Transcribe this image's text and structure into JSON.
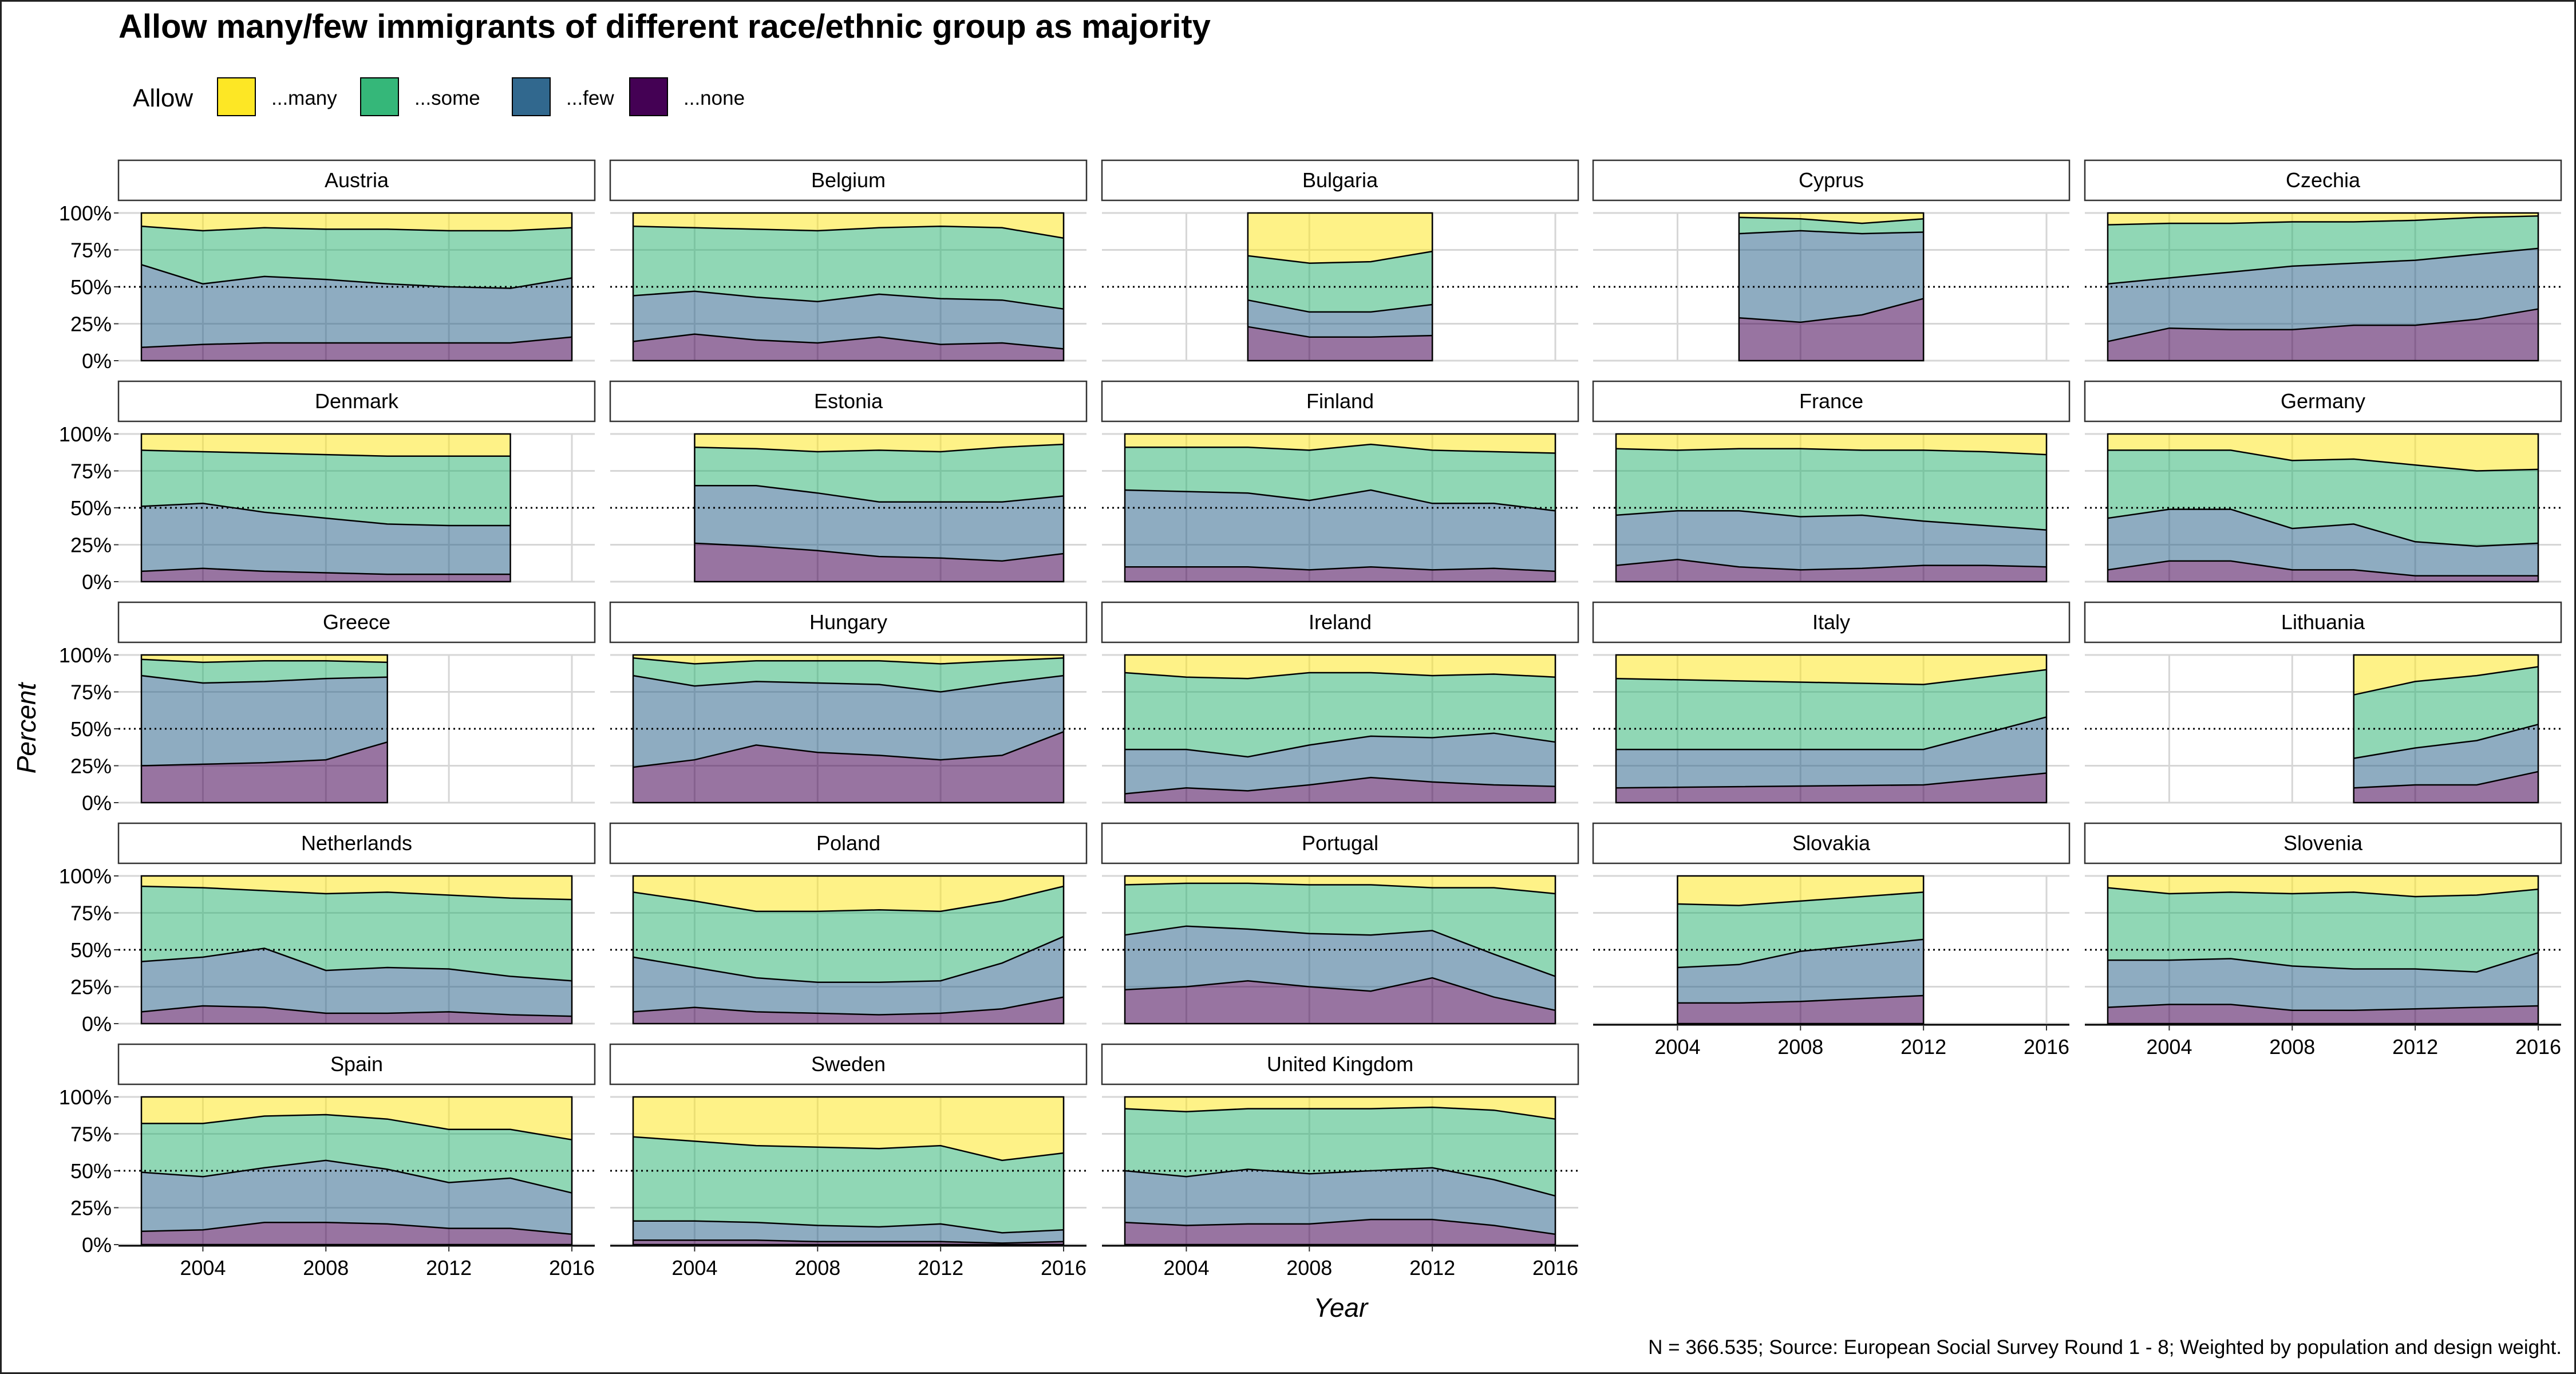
{
  "chart_data": {
    "type": "area",
    "title": "Allow many/few immigrants of different race/ethnic group as majority",
    "xlabel": "Year",
    "ylabel": "Percent",
    "caption": "N = 366.535; Source: European Social Survey Round 1 - 8; Weighted by population and design weight.",
    "legend_title": "Allow",
    "legend_position": "top-left",
    "legend": [
      {
        "key": "many",
        "label": "...many",
        "color": "#FDE725"
      },
      {
        "key": "some",
        "label": "...some",
        "color": "#35B779"
      },
      {
        "key": "few",
        "label": "...few",
        "color": "#31688E"
      },
      {
        "key": "none",
        "label": "...none",
        "color": "#440154"
      }
    ],
    "x_ticks": [
      2004,
      2008,
      2012,
      2016
    ],
    "xlim": [
      2002,
      2016
    ],
    "y_ticks": [
      "0%",
      "25%",
      "50%",
      "75%",
      "100%"
    ],
    "ylim": [
      0,
      100
    ],
    "reference_line": 50,
    "grid": true,
    "stack_note": "boundaries are cumulative percent from bottom: none, none+few, none+few+some",
    "panels": [
      {
        "name": "Austria",
        "years": [
          2002,
          2004,
          2006,
          2008,
          2010,
          2012,
          2014,
          2016
        ],
        "none": [
          9,
          11,
          12,
          12,
          12,
          12,
          12,
          16
        ],
        "none_few": [
          65,
          52,
          57,
          55,
          52,
          50,
          49,
          56
        ],
        "none_few_some": [
          91,
          88,
          90,
          89,
          89,
          88,
          88,
          90
        ]
      },
      {
        "name": "Belgium",
        "years": [
          2002,
          2004,
          2006,
          2008,
          2010,
          2012,
          2014,
          2016
        ],
        "none": [
          13,
          18,
          14,
          12,
          16,
          11,
          12,
          8
        ],
        "none_few": [
          44,
          47,
          43,
          40,
          45,
          42,
          41,
          35
        ],
        "none_few_some": [
          91,
          90,
          89,
          88,
          90,
          91,
          90,
          83
        ]
      },
      {
        "name": "Bulgaria",
        "years": [
          2006,
          2008,
          2010,
          2012
        ],
        "none": [
          23,
          16,
          16,
          17
        ],
        "none_few": [
          41,
          33,
          33,
          38
        ],
        "none_few_some": [
          71,
          66,
          67,
          74
        ]
      },
      {
        "name": "Cyprus",
        "years": [
          2006,
          2008,
          2010,
          2012
        ],
        "none": [
          29,
          26,
          31,
          42
        ],
        "none_few": [
          86,
          88,
          86,
          87
        ],
        "none_few_some": [
          97,
          96,
          93,
          96
        ]
      },
      {
        "name": "Czechia",
        "years": [
          2002,
          2004,
          2006,
          2008,
          2010,
          2012,
          2014,
          2016
        ],
        "none": [
          13,
          22,
          21,
          21,
          24,
          24,
          28,
          35
        ],
        "none_few": [
          52,
          56,
          60,
          64,
          66,
          68,
          72,
          76
        ],
        "none_few_some": [
          92,
          93,
          93,
          94,
          94,
          95,
          97,
          98
        ]
      },
      {
        "name": "Denmark",
        "years": [
          2002,
          2004,
          2006,
          2008,
          2010,
          2012,
          2014
        ],
        "none": [
          7,
          9,
          7,
          6,
          5,
          5,
          5
        ],
        "none_few": [
          51,
          53,
          47,
          43,
          39,
          38,
          38
        ],
        "none_few_some": [
          89,
          88,
          87,
          86,
          85,
          85,
          85
        ]
      },
      {
        "name": "Estonia",
        "years": [
          2004,
          2006,
          2008,
          2010,
          2012,
          2014,
          2016
        ],
        "none": [
          26,
          24,
          21,
          17,
          16,
          14,
          19
        ],
        "none_few": [
          65,
          65,
          60,
          54,
          54,
          54,
          58
        ],
        "none_few_some": [
          91,
          90,
          88,
          89,
          88,
          91,
          93
        ]
      },
      {
        "name": "Finland",
        "years": [
          2002,
          2004,
          2006,
          2008,
          2010,
          2012,
          2014,
          2016
        ],
        "none": [
          10,
          10,
          10,
          8,
          10,
          8,
          9,
          7
        ],
        "none_few": [
          62,
          61,
          60,
          55,
          62,
          53,
          53,
          48
        ],
        "none_few_some": [
          91,
          91,
          91,
          89,
          93,
          89,
          88,
          87
        ]
      },
      {
        "name": "France",
        "years": [
          2002,
          2004,
          2006,
          2008,
          2010,
          2012,
          2014,
          2016
        ],
        "none": [
          11,
          15,
          10,
          8,
          9,
          11,
          11,
          10
        ],
        "none_few": [
          45,
          48,
          48,
          44,
          45,
          41,
          38,
          35
        ],
        "none_few_some": [
          90,
          89,
          90,
          90,
          89,
          89,
          88,
          86
        ]
      },
      {
        "name": "Germany",
        "years": [
          2002,
          2004,
          2006,
          2008,
          2010,
          2012,
          2014,
          2016
        ],
        "none": [
          8,
          14,
          14,
          8,
          8,
          4,
          4,
          4
        ],
        "none_few": [
          43,
          49,
          49,
          36,
          39,
          27,
          24,
          26
        ],
        "none_few_some": [
          89,
          89,
          89,
          82,
          83,
          79,
          75,
          76
        ]
      },
      {
        "name": "Greece",
        "years": [
          2002,
          2004,
          2006,
          2008,
          2010
        ],
        "none": [
          25,
          26,
          27,
          29,
          41
        ],
        "none_few": [
          86,
          81,
          82,
          84,
          85
        ],
        "none_few_some": [
          97,
          95,
          96,
          96,
          95
        ]
      },
      {
        "name": "Hungary",
        "years": [
          2002,
          2004,
          2006,
          2008,
          2010,
          2012,
          2014,
          2016
        ],
        "none": [
          24,
          29,
          39,
          34,
          32,
          29,
          32,
          48
        ],
        "none_few": [
          86,
          79,
          82,
          81,
          80,
          75,
          81,
          86
        ],
        "none_few_some": [
          98,
          94,
          96,
          96,
          96,
          94,
          96,
          98
        ]
      },
      {
        "name": "Ireland",
        "years": [
          2002,
          2004,
          2006,
          2008,
          2010,
          2012,
          2014,
          2016
        ],
        "none": [
          6,
          10,
          8,
          12,
          17,
          14,
          12,
          11
        ],
        "none_few": [
          36,
          36,
          31,
          39,
          45,
          44,
          47,
          41
        ],
        "none_few_some": [
          88,
          85,
          84,
          88,
          88,
          86,
          87,
          85
        ]
      },
      {
        "name": "Italy",
        "years": [
          2002,
          2012,
          2016
        ],
        "none": [
          10,
          12,
          20
        ],
        "none_few": [
          36,
          36,
          58
        ],
        "none_few_some": [
          84,
          80,
          90
        ]
      },
      {
        "name": "Lithuania",
        "years": [
          2010,
          2012,
          2014,
          2016
        ],
        "none": [
          10,
          12,
          12,
          21
        ],
        "none_few": [
          30,
          37,
          42,
          53
        ],
        "none_few_some": [
          73,
          82,
          86,
          92
        ]
      },
      {
        "name": "Netherlands",
        "years": [
          2002,
          2004,
          2006,
          2008,
          2010,
          2012,
          2014,
          2016
        ],
        "none": [
          8,
          12,
          11,
          7,
          7,
          8,
          6,
          5
        ],
        "none_few": [
          42,
          45,
          51,
          36,
          38,
          37,
          32,
          29
        ],
        "none_few_some": [
          93,
          92,
          90,
          88,
          89,
          87,
          85,
          84
        ]
      },
      {
        "name": "Poland",
        "years": [
          2002,
          2004,
          2006,
          2008,
          2010,
          2012,
          2014,
          2016
        ],
        "none": [
          8,
          11,
          8,
          7,
          6,
          7,
          10,
          18
        ],
        "none_few": [
          45,
          38,
          31,
          28,
          28,
          29,
          41,
          59
        ],
        "none_few_some": [
          89,
          83,
          76,
          76,
          77,
          76,
          83,
          93
        ]
      },
      {
        "name": "Portugal",
        "years": [
          2002,
          2004,
          2006,
          2008,
          2010,
          2012,
          2014,
          2016
        ],
        "none": [
          23,
          25,
          29,
          25,
          22,
          31,
          18,
          9
        ],
        "none_few": [
          60,
          66,
          64,
          61,
          60,
          63,
          47,
          32
        ],
        "none_few_some": [
          94,
          95,
          95,
          94,
          94,
          92,
          92,
          88
        ]
      },
      {
        "name": "Slovakia",
        "years": [
          2004,
          2006,
          2008,
          2010,
          2012
        ],
        "none": [
          14,
          14,
          15,
          17,
          19
        ],
        "none_few": [
          38,
          40,
          49,
          53,
          57
        ],
        "none_few_some": [
          81,
          80,
          83,
          86,
          89
        ]
      },
      {
        "name": "Slovenia",
        "years": [
          2002,
          2004,
          2006,
          2008,
          2010,
          2012,
          2014,
          2016
        ],
        "none": [
          11,
          13,
          13,
          9,
          9,
          10,
          11,
          12
        ],
        "none_few": [
          43,
          43,
          44,
          39,
          37,
          37,
          35,
          48
        ],
        "none_few_some": [
          92,
          88,
          89,
          88,
          89,
          86,
          87,
          91
        ]
      },
      {
        "name": "Spain",
        "years": [
          2002,
          2004,
          2006,
          2008,
          2010,
          2012,
          2014,
          2016
        ],
        "none": [
          9,
          10,
          15,
          15,
          14,
          11,
          11,
          7
        ],
        "none_few": [
          49,
          46,
          52,
          57,
          51,
          42,
          45,
          35
        ],
        "none_few_some": [
          82,
          82,
          87,
          88,
          85,
          78,
          78,
          71
        ]
      },
      {
        "name": "Sweden",
        "years": [
          2002,
          2004,
          2006,
          2008,
          2010,
          2012,
          2014,
          2016
        ],
        "none": [
          3,
          3,
          3,
          2,
          2,
          2,
          1,
          2
        ],
        "none_few": [
          16,
          16,
          15,
          13,
          12,
          14,
          8,
          10
        ],
        "none_few_some": [
          73,
          70,
          67,
          66,
          65,
          67,
          57,
          62
        ]
      },
      {
        "name": "United Kingdom",
        "years": [
          2002,
          2004,
          2006,
          2008,
          2010,
          2012,
          2014,
          2016
        ],
        "none": [
          15,
          13,
          14,
          14,
          17,
          17,
          13,
          7
        ],
        "none_few": [
          50,
          46,
          51,
          48,
          50,
          52,
          44,
          33
        ],
        "none_few_some": [
          92,
          90,
          92,
          92,
          92,
          93,
          91,
          85
        ]
      }
    ]
  }
}
